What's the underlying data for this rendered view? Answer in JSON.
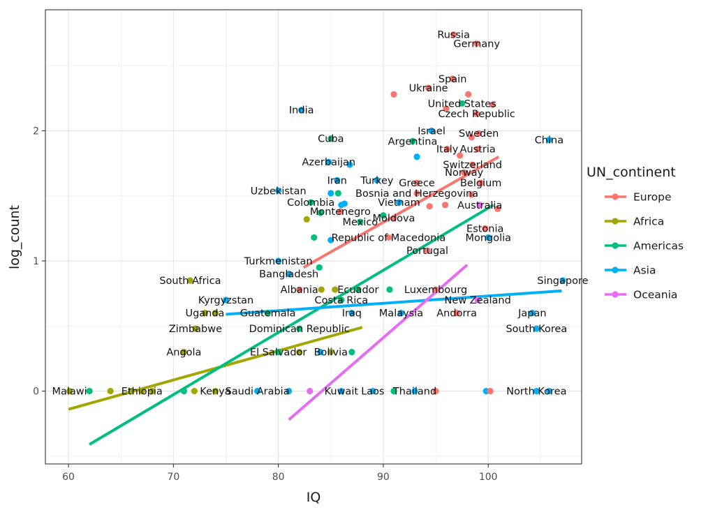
{
  "chart_data": {
    "type": "scatter",
    "title": "",
    "xlabel": "IQ",
    "ylabel": "log_count",
    "xlim": [
      57.8,
      108.9
    ],
    "ylim": [
      -0.56,
      2.93
    ],
    "x_ticks": [
      60,
      70,
      80,
      90,
      100
    ],
    "y_ticks": [
      0,
      1,
      2
    ],
    "grid": true,
    "legend_title": "UN_continent",
    "legend_position": "right",
    "colors": {
      "Europe": "#F8766D",
      "Africa": "#A3A500",
      "Americas": "#00BF7D",
      "Asia": "#00B0F6",
      "Oceania": "#E76BF3"
    },
    "series": [
      {
        "name": "Europe"
      },
      {
        "name": "Africa"
      },
      {
        "name": "Americas"
      },
      {
        "name": "Asia"
      },
      {
        "name": "Oceania"
      }
    ],
    "trend_lines": [
      {
        "series": "Europe",
        "x": [
          82.4,
          101.0
        ],
        "y": [
          0.95,
          1.8
        ]
      },
      {
        "series": "Africa",
        "x": [
          60.0,
          88.0
        ],
        "y": [
          -0.14,
          0.49
        ]
      },
      {
        "series": "Americas",
        "x": [
          62.0,
          100.5
        ],
        "y": [
          -0.41,
          1.43
        ]
      },
      {
        "series": "Asia",
        "x": [
          75.0,
          107.0
        ],
        "y": [
          0.59,
          0.77
        ]
      },
      {
        "series": "Oceania",
        "x": [
          81.0,
          98.0
        ],
        "y": [
          -0.22,
          0.97
        ]
      }
    ],
    "points": [
      {
        "label": "Russia",
        "series": "Europe",
        "x": 96.7,
        "y": 2.74
      },
      {
        "label": "Germany",
        "series": "Europe",
        "x": 98.9,
        "y": 2.67
      },
      {
        "label": "Spain",
        "series": "Europe",
        "x": 96.6,
        "y": 2.4
      },
      {
        "label": "Ukraine",
        "series": "Europe",
        "x": 94.3,
        "y": 2.33
      },
      {
        "label": "",
        "series": "Europe",
        "x": 91.0,
        "y": 2.28
      },
      {
        "label": "",
        "series": "Europe",
        "x": 98.1,
        "y": 2.28
      },
      {
        "label": "United States",
        "series": "Americas",
        "x": 97.5,
        "y": 2.21
      },
      {
        "label": "",
        "series": "Europe",
        "x": 100.4,
        "y": 2.2
      },
      {
        "label": "",
        "series": "Europe",
        "x": 96.0,
        "y": 2.17
      },
      {
        "label": "Czech Republic",
        "series": "Europe",
        "x": 98.9,
        "y": 2.13
      },
      {
        "label": "India",
        "series": "Asia",
        "x": 82.2,
        "y": 2.16
      },
      {
        "label": "Israel",
        "series": "Asia",
        "x": 94.6,
        "y": 2.0
      },
      {
        "label": "Sweden",
        "series": "Europe",
        "x": 99.1,
        "y": 1.98
      },
      {
        "label": "",
        "series": "Europe",
        "x": 98.4,
        "y": 1.95
      },
      {
        "label": "Cuba",
        "series": "Americas",
        "x": 85.0,
        "y": 1.94
      },
      {
        "label": "Argentina",
        "series": "Americas",
        "x": 92.8,
        "y": 1.92
      },
      {
        "label": "China",
        "series": "Asia",
        "x": 105.8,
        "y": 1.93
      },
      {
        "label": "Italy",
        "series": "Europe",
        "x": 96.1,
        "y": 1.86
      },
      {
        "label": "Austria",
        "series": "Europe",
        "x": 99.0,
        "y": 1.86
      },
      {
        "label": "",
        "series": "Asia",
        "x": 93.2,
        "y": 1.8
      },
      {
        "label": "",
        "series": "Europe",
        "x": 97.3,
        "y": 1.81
      },
      {
        "label": "Azerbaijan",
        "series": "Asia",
        "x": 84.8,
        "y": 1.76
      },
      {
        "label": "",
        "series": "Asia",
        "x": 86.8,
        "y": 1.74
      },
      {
        "label": "Switzerland",
        "series": "Europe",
        "x": 98.5,
        "y": 1.74
      },
      {
        "label": "Norway",
        "series": "Europe",
        "x": 97.7,
        "y": 1.68
      },
      {
        "label": "Iran",
        "series": "Asia",
        "x": 85.6,
        "y": 1.62
      },
      {
        "label": "Turkey",
        "series": "Asia",
        "x": 89.4,
        "y": 1.62
      },
      {
        "label": "Greece",
        "series": "Europe",
        "x": 93.2,
        "y": 1.6
      },
      {
        "label": "Belgium",
        "series": "Europe",
        "x": 99.3,
        "y": 1.6
      },
      {
        "label": "Uzbekistan",
        "series": "Asia",
        "x": 80.0,
        "y": 1.54
      },
      {
        "label": "",
        "series": "Asia",
        "x": 85.0,
        "y": 1.52
      },
      {
        "label": "",
        "series": "Americas",
        "x": 85.7,
        "y": 1.52
      },
      {
        "label": "Bosnia and Herzegovina",
        "series": "Europe",
        "x": 93.2,
        "y": 1.52
      },
      {
        "label": "",
        "series": "Europe",
        "x": 98.4,
        "y": 1.51
      },
      {
        "label": "Colombia",
        "series": "Americas",
        "x": 83.1,
        "y": 1.45
      },
      {
        "label": "",
        "series": "Asia",
        "x": 86.0,
        "y": 1.43
      },
      {
        "label": "",
        "series": "Asia",
        "x": 86.3,
        "y": 1.44
      },
      {
        "label": "Vietnam",
        "series": "Asia",
        "x": 91.5,
        "y": 1.45
      },
      {
        "label": "",
        "series": "Europe",
        "x": 94.4,
        "y": 1.42
      },
      {
        "label": "",
        "series": "Europe",
        "x": 95.9,
        "y": 1.43
      },
      {
        "label": "Australia",
        "series": "Oceania",
        "x": 99.2,
        "y": 1.43
      },
      {
        "label": "",
        "series": "Europe",
        "x": 100.9,
        "y": 1.4
      },
      {
        "label": "Montenegro",
        "series": "Europe",
        "x": 85.9,
        "y": 1.38
      },
      {
        "label": "",
        "series": "Americas",
        "x": 84.0,
        "y": 1.37
      },
      {
        "label": "Moldova",
        "series": "Europe",
        "x": 91.0,
        "y": 1.33
      },
      {
        "label": "",
        "series": "Americas",
        "x": 90.0,
        "y": 1.35
      },
      {
        "label": "",
        "series": "Africa",
        "x": 82.7,
        "y": 1.32
      },
      {
        "label": "Mexico",
        "series": "Americas",
        "x": 87.8,
        "y": 1.3
      },
      {
        "label": "Estonia",
        "series": "Europe",
        "x": 99.7,
        "y": 1.25
      },
      {
        "label": "Republic of Macedonia",
        "series": "Europe",
        "x": 90.5,
        "y": 1.18
      },
      {
        "label": "",
        "series": "Americas",
        "x": 83.4,
        "y": 1.18
      },
      {
        "label": "",
        "series": "Asia",
        "x": 85.0,
        "y": 1.16
      },
      {
        "label": "Mongolia",
        "series": "Asia",
        "x": 100.0,
        "y": 1.18
      },
      {
        "label": "Portugal",
        "series": "Europe",
        "x": 94.2,
        "y": 1.08
      },
      {
        "label": "Turkmenistan",
        "series": "Asia",
        "x": 80.0,
        "y": 1.0
      },
      {
        "label": "",
        "series": "Americas",
        "x": 83.9,
        "y": 0.95
      },
      {
        "label": "Bangladesh",
        "series": "Asia",
        "x": 81.0,
        "y": 0.9
      },
      {
        "label": "South Africa",
        "series": "Africa",
        "x": 71.6,
        "y": 0.85
      },
      {
        "label": "Singapore",
        "series": "Asia",
        "x": 107.1,
        "y": 0.85
      },
      {
        "label": "Albania",
        "series": "Europe",
        "x": 82.0,
        "y": 0.78
      },
      {
        "label": "",
        "series": "Africa",
        "x": 84.1,
        "y": 0.78
      },
      {
        "label": "",
        "series": "Africa",
        "x": 85.4,
        "y": 0.78
      },
      {
        "label": "Ecuador",
        "series": "Americas",
        "x": 87.6,
        "y": 0.78
      },
      {
        "label": "",
        "series": "Americas",
        "x": 90.6,
        "y": 0.78
      },
      {
        "label": "Luxembourg",
        "series": "Europe",
        "x": 95.0,
        "y": 0.78
      },
      {
        "label": "Kyrgyzstan",
        "series": "Asia",
        "x": 75.0,
        "y": 0.7
      },
      {
        "label": "Costa Rica",
        "series": "Americas",
        "x": 86.0,
        "y": 0.7
      },
      {
        "label": "New Zealand",
        "series": "Oceania",
        "x": 99.0,
        "y": 0.7
      },
      {
        "label": "Uganda",
        "series": "Africa",
        "x": 73.0,
        "y": 0.6
      },
      {
        "label": "",
        "series": "Africa",
        "x": 74.0,
        "y": 0.6
      },
      {
        "label": "Guatemala",
        "series": "Americas",
        "x": 79.0,
        "y": 0.6
      },
      {
        "label": "Iraq",
        "series": "Asia",
        "x": 87.0,
        "y": 0.6
      },
      {
        "label": "Malaysia",
        "series": "Asia",
        "x": 91.7,
        "y": 0.6
      },
      {
        "label": "Andorra",
        "series": "Europe",
        "x": 97.0,
        "y": 0.6
      },
      {
        "label": "Japan",
        "series": "Asia",
        "x": 104.2,
        "y": 0.6
      },
      {
        "label": "Zimbabwe",
        "series": "Africa",
        "x": 72.1,
        "y": 0.48
      },
      {
        "label": "Dominican Republic",
        "series": "Americas",
        "x": 82.0,
        "y": 0.48
      },
      {
        "label": "South Korea",
        "series": "Asia",
        "x": 104.6,
        "y": 0.48
      },
      {
        "label": "Angola",
        "series": "Africa",
        "x": 71.0,
        "y": 0.3
      },
      {
        "label": "El Salvador",
        "series": "Americas",
        "x": 80.0,
        "y": 0.3
      },
      {
        "label": "",
        "series": "Africa",
        "x": 82.0,
        "y": 0.3
      },
      {
        "label": "",
        "series": "Asia",
        "x": 84.0,
        "y": 0.3
      },
      {
        "label": "Bolivia",
        "series": "Africa",
        "x": 85.0,
        "y": 0.3
      },
      {
        "label": "",
        "series": "Americas",
        "x": 87.0,
        "y": 0.3
      },
      {
        "label": "Malawi",
        "series": "Africa",
        "x": 60.1,
        "y": 0
      },
      {
        "label": "",
        "series": "Americas",
        "x": 62.0,
        "y": 0
      },
      {
        "label": "",
        "series": "Africa",
        "x": 64.0,
        "y": 0
      },
      {
        "label": "",
        "series": "Africa",
        "x": 66.0,
        "y": 0
      },
      {
        "label": "Ethiopia",
        "series": "Africa",
        "x": 67.0,
        "y": 0
      },
      {
        "label": "",
        "series": "Africa",
        "x": 68.0,
        "y": 0
      },
      {
        "label": "",
        "series": "Americas",
        "x": 71.0,
        "y": 0
      },
      {
        "label": "",
        "series": "Africa",
        "x": 72.0,
        "y": 0
      },
      {
        "label": "Kenya",
        "series": "Africa",
        "x": 74.0,
        "y": 0
      },
      {
        "label": "Saudi Arabia",
        "series": "Asia",
        "x": 78.0,
        "y": 0
      },
      {
        "label": "",
        "series": "Asia",
        "x": 81.0,
        "y": 0
      },
      {
        "label": "Kuwait",
        "series": "Asia",
        "x": 86.0,
        "y": 0
      },
      {
        "label": "",
        "series": "Oceania",
        "x": 83.0,
        "y": 0
      },
      {
        "label": "Laos",
        "series": "Asia",
        "x": 89.0,
        "y": 0
      },
      {
        "label": "",
        "series": "Americas",
        "x": 91.0,
        "y": 0
      },
      {
        "label": "Thailand",
        "series": "Asia",
        "x": 93.0,
        "y": 0
      },
      {
        "label": "",
        "series": "Europe",
        "x": 95.0,
        "y": 0
      },
      {
        "label": "",
        "series": "Asia",
        "x": 99.8,
        "y": 0
      },
      {
        "label": "",
        "series": "Europe",
        "x": 100.2,
        "y": 0
      },
      {
        "label": "North Korea",
        "series": "Asia",
        "x": 104.6,
        "y": 0
      },
      {
        "label": "",
        "series": "Asia",
        "x": 105.8,
        "y": 0
      }
    ]
  }
}
